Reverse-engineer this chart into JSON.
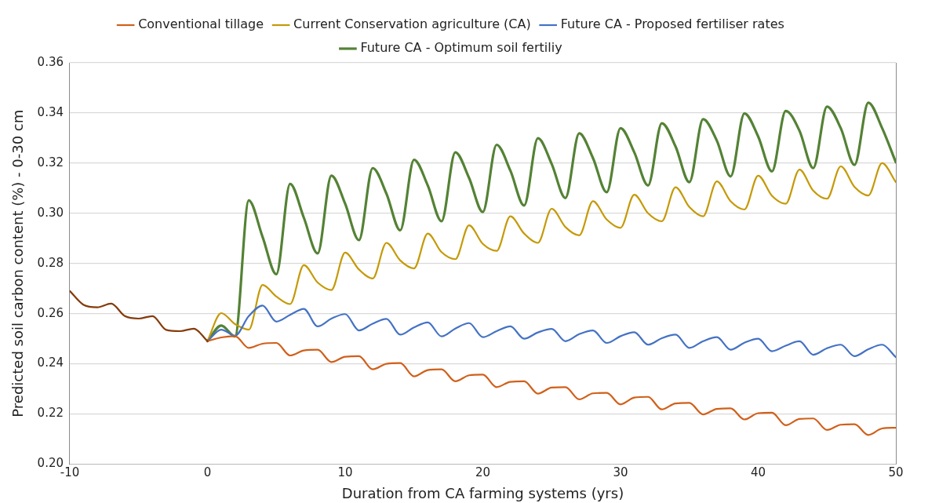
{
  "chart_data": {
    "type": "line",
    "xlabel": "Duration from CA farming systems (yrs)",
    "ylabel": "Predicted soil carbon content (%) - 0-30 cm",
    "xlim": [
      -10,
      50
    ],
    "xticks": [
      -10,
      0,
      10,
      20,
      30,
      40,
      50
    ],
    "ylim": [
      0.2,
      0.36
    ],
    "yticks": [
      {
        "value": 0.2,
        "label": "0.20"
      },
      {
        "value": 0.22,
        "label": "0.22"
      },
      {
        "value": 0.24,
        "label": "0.24"
      },
      {
        "value": 0.26,
        "label": "0.26"
      },
      {
        "value": 0.28,
        "label": "0.28"
      },
      {
        "value": 0.3,
        "label": "0.30"
      },
      {
        "value": 0.32,
        "label": "0.32"
      },
      {
        "value": 0.34,
        "label": "0.34"
      },
      {
        "value": 0.36,
        "label": "0.36"
      }
    ],
    "grid": "y",
    "legend": "top",
    "marker": "none",
    "line_style": "solid",
    "series": [
      {
        "color": "#843c0c",
        "x": [
          -10,
          -9,
          -8,
          -7,
          -6,
          -5,
          -4,
          -3,
          -2,
          -1,
          0
        ],
        "values": [
          0.269,
          0.2635,
          0.2625,
          0.264,
          0.259,
          0.258,
          0.259,
          0.2535,
          0.253,
          0.254,
          0.249
        ]
      },
      {
        "name": "Conventional tillage",
        "color": "#d0601a",
        "x": [
          0,
          1,
          2,
          3,
          4,
          5,
          6,
          7,
          8,
          9,
          10,
          11,
          12,
          13,
          14,
          15,
          16,
          17,
          18,
          19,
          20,
          21,
          22,
          23,
          24,
          25,
          26,
          27,
          28,
          29,
          30,
          31,
          32,
          33,
          34,
          35,
          36,
          37,
          38,
          39,
          40,
          41,
          42,
          43,
          44,
          45,
          46,
          47,
          48,
          49,
          50
        ],
        "values": [
          0.249,
          0.2505,
          0.251,
          0.2463,
          0.248,
          0.2483,
          0.2433,
          0.2453,
          0.2456,
          0.2407,
          0.2428,
          0.243,
          0.2378,
          0.24,
          0.2403,
          0.235,
          0.2375,
          0.2378,
          0.233,
          0.2354,
          0.2357,
          0.2307,
          0.2328,
          0.233,
          0.2281,
          0.2305,
          0.2307,
          0.2258,
          0.2282,
          0.2284,
          0.2238,
          0.2265,
          0.2268,
          0.2218,
          0.2242,
          0.2244,
          0.2198,
          0.222,
          0.2222,
          0.2178,
          0.2203,
          0.2205,
          0.2155,
          0.218,
          0.2182,
          0.2136,
          0.2157,
          0.2159,
          0.2116,
          0.2142,
          0.2145
        ]
      },
      {
        "name": "Future CA - Proposed fertiliser rates",
        "color": "#4472c4",
        "x": [
          0,
          1,
          2,
          3,
          4,
          5,
          6,
          7,
          8,
          9,
          10,
          11,
          12,
          13,
          14,
          15,
          16,
          17,
          18,
          19,
          20,
          21,
          22,
          23,
          24,
          25,
          26,
          27,
          28,
          29,
          30,
          31,
          32,
          33,
          34,
          35,
          36,
          37,
          38,
          39,
          40,
          41,
          42,
          43,
          44,
          45,
          46,
          47,
          48,
          49,
          50
        ],
        "values": [
          0.249,
          0.2536,
          0.2512,
          0.259,
          0.2632,
          0.2568,
          0.2595,
          0.2619,
          0.2549,
          0.258,
          0.2598,
          0.2533,
          0.256,
          0.2579,
          0.2516,
          0.2545,
          0.2565,
          0.2509,
          0.254,
          0.2562,
          0.2506,
          0.253,
          0.2549,
          0.25,
          0.2525,
          0.2539,
          0.249,
          0.2518,
          0.2533,
          0.2483,
          0.251,
          0.2526,
          0.2476,
          0.2502,
          0.2516,
          0.2463,
          0.249,
          0.2506,
          0.2456,
          0.2484,
          0.25,
          0.245,
          0.2472,
          0.249,
          0.2436,
          0.2462,
          0.2476,
          0.243,
          0.2458,
          0.2476,
          0.2426
        ]
      },
      {
        "name": "Current Conservation agriculture (CA)",
        "color": "#c59a08",
        "x": [
          0,
          1,
          2,
          3,
          4,
          5,
          6,
          7,
          8,
          9,
          10,
          11,
          12,
          13,
          14,
          15,
          16,
          17,
          18,
          19,
          20,
          21,
          22,
          23,
          24,
          25,
          26,
          27,
          28,
          29,
          30,
          31,
          32,
          33,
          34,
          35,
          36,
          37,
          38,
          39,
          40,
          41,
          42,
          43,
          44,
          45,
          46,
          47,
          48,
          49,
          50
        ],
        "values": [
          0.249,
          0.2602,
          0.2558,
          0.2536,
          0.2714,
          0.2668,
          0.2638,
          0.2793,
          0.2724,
          0.2694,
          0.2843,
          0.2776,
          0.274,
          0.2882,
          0.2812,
          0.278,
          0.2919,
          0.2845,
          0.2817,
          0.2952,
          0.2878,
          0.285,
          0.2988,
          0.2919,
          0.2882,
          0.3018,
          0.2945,
          0.2912,
          0.3048,
          0.2975,
          0.2942,
          0.3074,
          0.3,
          0.2968,
          0.3104,
          0.3025,
          0.2988,
          0.3127,
          0.3048,
          0.3015,
          0.315,
          0.307,
          0.3038,
          0.3174,
          0.309,
          0.3058,
          0.3187,
          0.3105,
          0.3071,
          0.32,
          0.3124
        ]
      },
      {
        "name": "Future CA - Optimum soil fertiliy",
        "color": "#548235",
        "x": [
          0,
          1,
          2,
          3,
          4,
          5,
          6,
          7,
          8,
          9,
          10,
          11,
          12,
          13,
          14,
          15,
          16,
          17,
          18,
          19,
          20,
          21,
          22,
          23,
          24,
          25,
          26,
          27,
          28,
          29,
          30,
          31,
          32,
          33,
          34,
          35,
          36,
          37,
          38,
          39,
          40,
          41,
          42,
          43,
          44,
          45,
          46,
          47,
          48,
          49,
          50
        ],
        "values": [
          0.249,
          0.2552,
          0.2509,
          0.3051,
          0.2906,
          0.2757,
          0.3117,
          0.2982,
          0.284,
          0.315,
          0.3038,
          0.2893,
          0.318,
          0.3078,
          0.2932,
          0.3213,
          0.3111,
          0.2968,
          0.3243,
          0.3141,
          0.3005,
          0.3273,
          0.317,
          0.3031,
          0.3299,
          0.3197,
          0.3061,
          0.3319,
          0.322,
          0.3084,
          0.3339,
          0.3243,
          0.3111,
          0.3359,
          0.3266,
          0.3124,
          0.3375,
          0.3289,
          0.3147,
          0.3398,
          0.3306,
          0.3167,
          0.3408,
          0.3329,
          0.318,
          0.3425,
          0.3339,
          0.3193,
          0.3441,
          0.334,
          0.3203
        ]
      }
    ]
  }
}
